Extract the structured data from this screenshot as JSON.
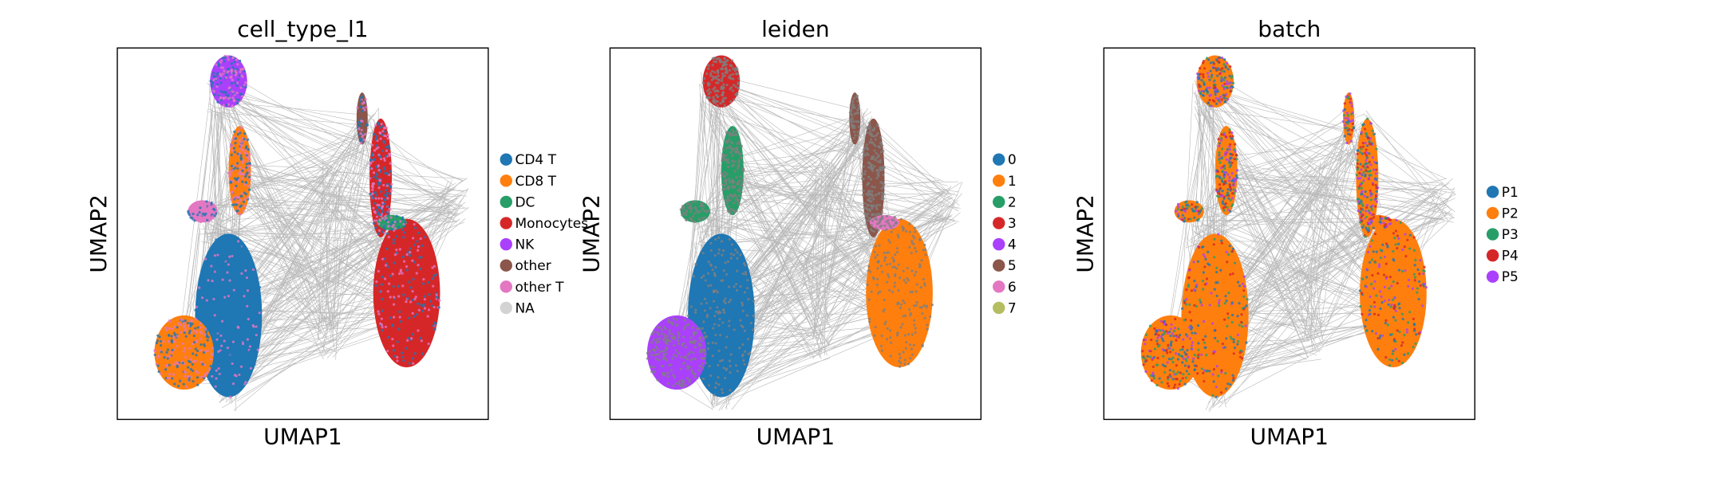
{
  "chart_data": [
    {
      "type": "scatter",
      "title": "cell_type_l1",
      "xlabel": "UMAP1",
      "ylabel": "UMAP2",
      "grid": false,
      "legend_placement": "right",
      "legend": [
        {
          "label": "CD4 T",
          "color": "#1f77b4"
        },
        {
          "label": "CD8 T",
          "color": "#ff7f0e"
        },
        {
          "label": "DC",
          "color": "#279e68"
        },
        {
          "label": "Monocytes",
          "color": "#d62728"
        },
        {
          "label": "NK",
          "color": "#aa40fc"
        },
        {
          "label": "other",
          "color": "#8c564b"
        },
        {
          "label": "other T",
          "color": "#e377c2"
        },
        {
          "label": "NA",
          "color": "#d3d3d3"
        }
      ]
    },
    {
      "type": "scatter",
      "title": "leiden",
      "xlabel": "UMAP1",
      "ylabel": "UMAP2",
      "grid": false,
      "legend_placement": "right",
      "legend": [
        {
          "label": "0",
          "color": "#1f77b4"
        },
        {
          "label": "1",
          "color": "#ff7f0e"
        },
        {
          "label": "2",
          "color": "#279e68"
        },
        {
          "label": "3",
          "color": "#d62728"
        },
        {
          "label": "4",
          "color": "#aa40fc"
        },
        {
          "label": "5",
          "color": "#8c564b"
        },
        {
          "label": "6",
          "color": "#e377c2"
        },
        {
          "label": "7",
          "color": "#b5bd61"
        }
      ]
    },
    {
      "type": "scatter",
      "title": "batch",
      "xlabel": "UMAP1",
      "ylabel": "UMAP2",
      "grid": false,
      "legend_placement": "right",
      "legend": [
        {
          "label": "P1",
          "color": "#1f77b4"
        },
        {
          "label": "P2",
          "color": "#ff7f0e"
        },
        {
          "label": "P3",
          "color": "#279e68"
        },
        {
          "label": "P4",
          "color": "#d62728"
        },
        {
          "label": "P5",
          "color": "#aa40fc"
        }
      ]
    }
  ],
  "colors": {
    "edges": "#808080",
    "frame": "#000000"
  }
}
